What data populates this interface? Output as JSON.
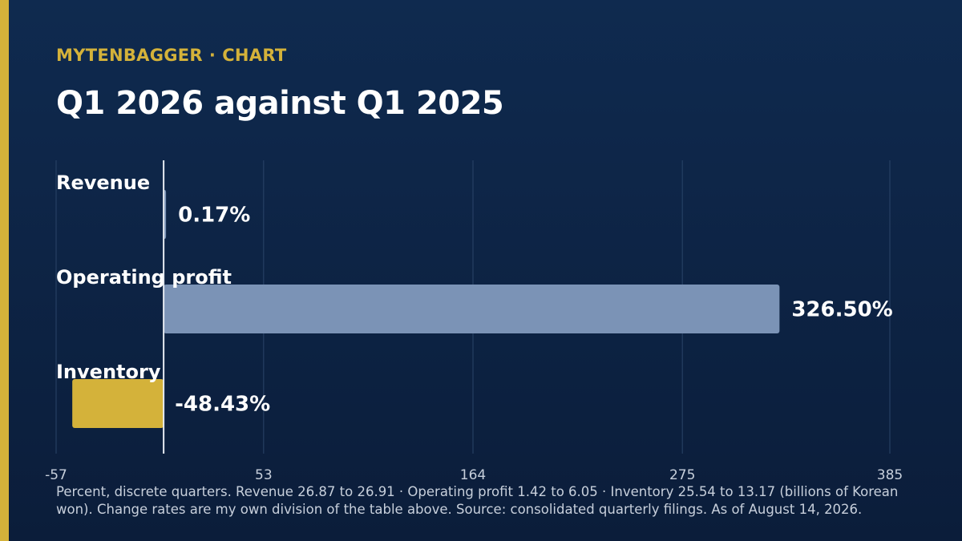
{
  "header": {
    "brand": "MYTENBAGGER",
    "separator": "·",
    "section": "CHART",
    "title": "Q1 2026 against Q1 2025"
  },
  "colors": {
    "background": "#0d2546",
    "accent": "#d4b23a",
    "positive_bar": "#7b93b6",
    "negative_bar": "#d4b23a",
    "grid": "#2a4468",
    "zero_line": "#e6ebf2"
  },
  "chart_data": {
    "type": "bar",
    "orientation": "horizontal",
    "categories": [
      "Revenue",
      "Operating profit",
      "Inventory"
    ],
    "values": [
      0.17,
      326.5,
      -48.43
    ],
    "data_labels": [
      "0.17%",
      "326.50%",
      "-48.43%"
    ],
    "xlim": [
      -57,
      385
    ],
    "xticks": [
      -57,
      53,
      164,
      275,
      385
    ],
    "xtick_labels": [
      "-57",
      "53",
      "164",
      "275",
      "385"
    ],
    "grid": true,
    "legend": "none",
    "title": "Q1 2026 against Q1 2025"
  },
  "footnote": "Percent, discrete quarters. Revenue 26.87 to 26.91 · Operating profit 1.42 to 6.05 · Inventory 25.54 to 13.17 (billions of Korean won). Change rates are my own division of the table above. Source: consolidated quarterly filings. As of August 14, 2026."
}
